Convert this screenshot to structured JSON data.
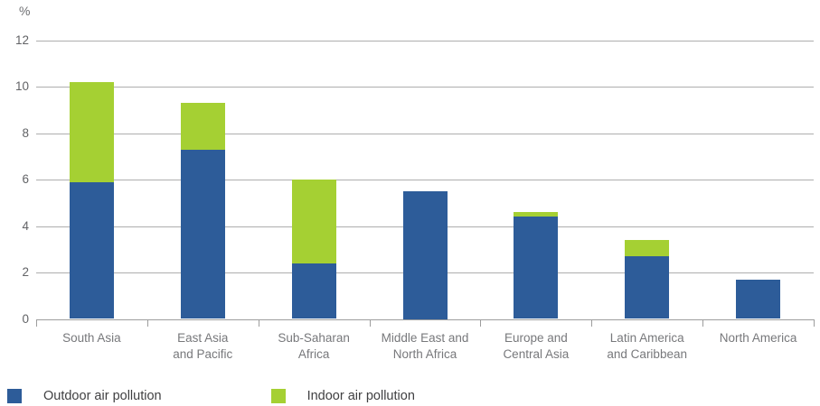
{
  "chart_data": {
    "type": "bar",
    "stacked": true,
    "title": "",
    "unit_label": "%",
    "xlabel": "",
    "ylabel": "%",
    "ylim": [
      0,
      12
    ],
    "yticks": [
      0,
      2,
      4,
      6,
      8,
      10,
      12
    ],
    "grid": true,
    "legend_position": "bottom",
    "categories": [
      "South Asia",
      "East Asia and Pacific",
      "Sub-Saharan Africa",
      "Middle East and North Africa",
      "Europe and Central Asia",
      "Latin America and Caribbean",
      "North America"
    ],
    "categories_wrapped": [
      [
        "South Asia"
      ],
      [
        "East Asia",
        "and Pacific"
      ],
      [
        "Sub-Saharan",
        "Africa"
      ],
      [
        "Middle East and",
        "North Africa"
      ],
      [
        "Europe and",
        "Central Asia"
      ],
      [
        "Latin America",
        "and Caribbean"
      ],
      [
        "North America"
      ]
    ],
    "series": [
      {
        "name": "Outdoor air pollution",
        "color": "#2d5c99",
        "values": [
          5.9,
          7.3,
          2.4,
          5.5,
          4.4,
          2.7,
          1.7
        ]
      },
      {
        "name": "Indoor air pollution",
        "color": "#a5d033",
        "values": [
          4.3,
          2.0,
          3.6,
          0,
          0.2,
          0.7,
          0
        ]
      }
    ]
  },
  "colors": {
    "gridline": "#aeaeae",
    "axis_text": "#626366",
    "category_text": "#77787b",
    "legend_text": "#3f3f41",
    "background": "#ffffff"
  }
}
